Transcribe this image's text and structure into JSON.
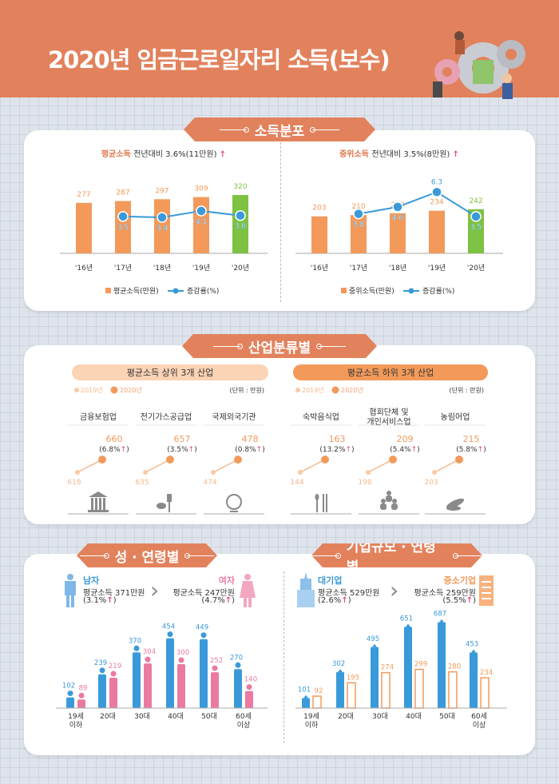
{
  "header": {
    "title": "2020년 임금근로일자리 소득(보수)"
  },
  "sections": {
    "s1": "소득분포",
    "s2": "산업분류별",
    "s3a": "성 · 연령별",
    "s3b": "기업규모 · 연령별"
  },
  "colors": {
    "orange": "#f39a5b",
    "green": "#7dc242",
    "blue": "#3a9ad9",
    "pink": "#ea7aa0",
    "accent": "#e2825d"
  },
  "chart_data": [
    {
      "type": "bar",
      "title_key": "평균소득",
      "title_rest": "전년대비 3.6%(11만원)",
      "categories": [
        "'16년",
        "'17년",
        "'18년",
        "'19년",
        "'20년"
      ],
      "series": [
        {
          "name": "평균소득(만원)",
          "values": [
            277,
            287,
            297,
            309,
            320
          ]
        },
        {
          "name": "증감률(%)",
          "values": [
            null,
            3.5,
            3.4,
            4.1,
            3.6
          ]
        }
      ],
      "legend": "bottom"
    },
    {
      "type": "bar",
      "title_key": "중위소득",
      "title_rest": "전년대비 3.5%(8만원)",
      "categories": [
        "'16년",
        "'17년",
        "'18년",
        "'19년",
        "'20년"
      ],
      "series": [
        {
          "name": "중위소득(만원)",
          "values": [
            203,
            210,
            220,
            234,
            242
          ]
        },
        {
          "name": "증감률(%)",
          "values": [
            null,
            3.8,
            4.6,
            6.3,
            3.5
          ]
        }
      ],
      "legend": "bottom"
    },
    {
      "type": "bar",
      "title": "성 · 연령별",
      "categories": [
        "19세 이하",
        "20대",
        "30대",
        "40대",
        "50대",
        "60세 이상"
      ],
      "series": [
        {
          "name": "남자",
          "values": [
            102,
            239,
            370,
            454,
            449,
            270
          ]
        },
        {
          "name": "여자",
          "values": [
            89,
            219,
            304,
            300,
            252,
            140
          ]
        }
      ]
    },
    {
      "type": "bar",
      "title": "기업규모 · 연령별",
      "categories": [
        "19세 이하",
        "20대",
        "30대",
        "40대",
        "50대",
        "60세 이상"
      ],
      "series": [
        {
          "name": "대기업",
          "values": [
            101,
            302,
            495,
            651,
            687,
            453
          ]
        },
        {
          "name": "중소기업",
          "values": [
            92,
            195,
            274,
            299,
            280,
            234
          ]
        }
      ]
    }
  ],
  "industry": {
    "top_title": "평균소득 상위 3개 산업",
    "bottom_title": "평균소득 하위 3개 산업",
    "legend_2019": "2019년",
    "legend_2020": "2020년",
    "unit": "(단위 : 만원)",
    "items": [
      {
        "name": "금융보험업",
        "v2019": "618",
        "v2020": "660",
        "pct": "(6.8%",
        "icon": "bank-icon"
      },
      {
        "name": "전기가스공급업",
        "v2019": "635",
        "v2020": "657",
        "pct": "(3.5%",
        "icon": "plug-leaf-icon"
      },
      {
        "name": "국제외국기관",
        "v2019": "474",
        "v2020": "478",
        "pct": "(0.8%",
        "icon": "globe-icon"
      },
      {
        "name": "숙박음식업",
        "v2019": "144",
        "v2020": "163",
        "pct": "(13.2%",
        "icon": "utensils-icon"
      },
      {
        "name": "협회단체 및\n개인서비스업",
        "v2019": "198",
        "v2020": "209",
        "pct": "(5.4%",
        "icon": "people-icon"
      },
      {
        "name": "농림어업",
        "v2019": "203",
        "v2020": "215",
        "pct": "(5.8%",
        "icon": "leaf-fish-icon"
      }
    ]
  },
  "gender": {
    "male_label": "남자",
    "male_income": "평균소득 371만원",
    "male_pct": "(3.1%",
    "female_label": "여자",
    "female_income": "평균소득 247만원",
    "female_pct": "(4.7%"
  },
  "company": {
    "large_label": "대기업",
    "large_income": "평균소득 529만원",
    "large_pct": "(2.6%",
    "small_label": "중소기업",
    "small_income": "평균소득 259만원",
    "small_pct": "(5.5%"
  },
  "arrow": "↑",
  "close_paren": ")"
}
